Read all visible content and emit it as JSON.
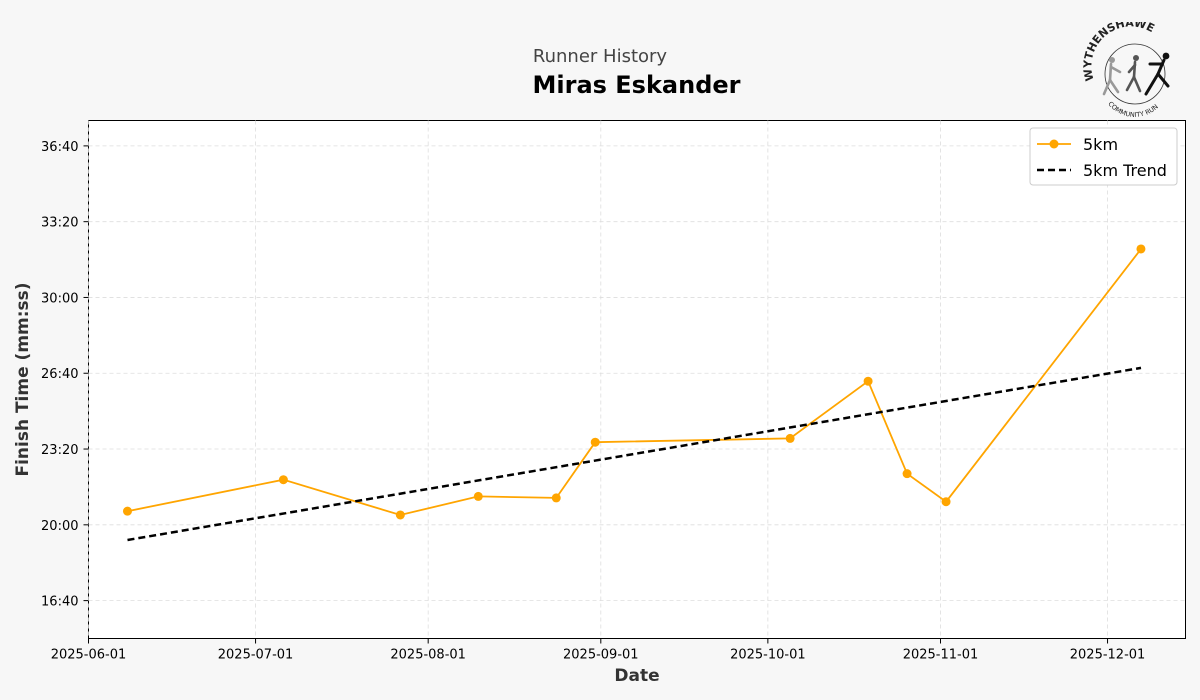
{
  "header": {
    "subtitle": "Runner History",
    "title": "Miras Eskander"
  },
  "logo": {
    "top_text": "WYTHENSHAWE",
    "bottom_text": "COMMUNITY RUN"
  },
  "chart_data": {
    "type": "line",
    "title": "Miras Eskander",
    "subtitle": "Runner History",
    "xlabel": "Date",
    "ylabel": "Finish Time (mm:ss)",
    "x_axis_type": "date",
    "xlim": [
      "2025-06-01",
      "2025-12-15"
    ],
    "ylim": [
      "15:00",
      "37:47"
    ],
    "x_ticks": [
      "2025-06-01",
      "2025-07-01",
      "2025-08-01",
      "2025-09-01",
      "2025-10-01",
      "2025-11-01",
      "2025-12-01"
    ],
    "y_ticks": [
      "16:40",
      "20:00",
      "23:20",
      "26:40",
      "30:00",
      "33:20",
      "36:40"
    ],
    "grid": true,
    "legend_position": "top-right",
    "series": [
      {
        "name": "5km",
        "style": "line-with-markers",
        "color": "#ffa500",
        "x": [
          "2025-06-08",
          "2025-07-06",
          "2025-07-27",
          "2025-08-10",
          "2025-08-24",
          "2025-08-31",
          "2025-10-05",
          "2025-10-19",
          "2025-10-26",
          "2025-11-02",
          "2025-12-07"
        ],
        "y": [
          "20:36",
          "21:59",
          "20:26",
          "21:15",
          "21:11",
          "23:38",
          "23:48",
          "26:19",
          "22:15",
          "21:01",
          "32:08"
        ]
      },
      {
        "name": "5km Trend",
        "style": "dashed-line",
        "color": "#000000",
        "x": [
          "2025-06-08",
          "2025-12-07"
        ],
        "y": [
          "19:20",
          "26:54"
        ]
      }
    ]
  }
}
